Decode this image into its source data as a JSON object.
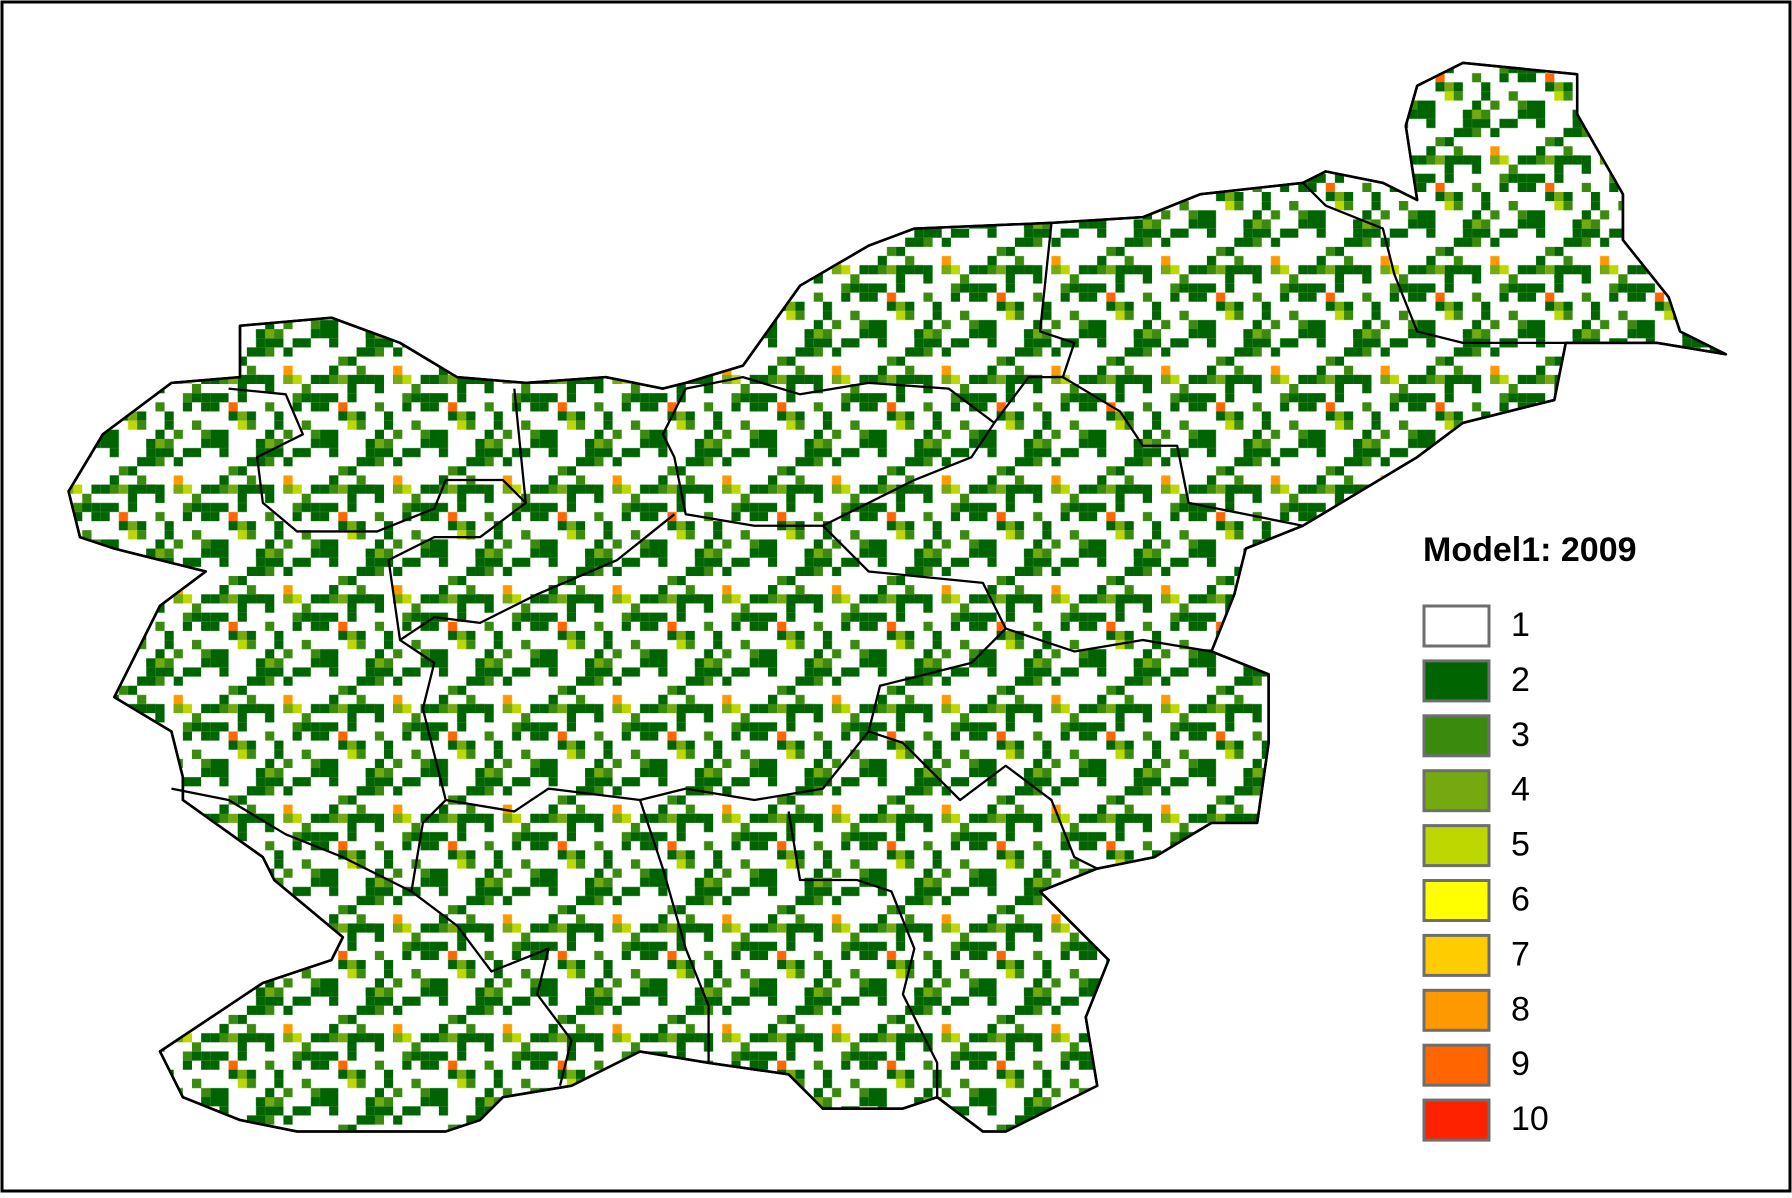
{
  "map": {
    "legend": {
      "title": "Model1: 2009",
      "items": [
        {
          "label": "1",
          "color": "#ffffff"
        },
        {
          "label": "2",
          "color": "#006400"
        },
        {
          "label": "3",
          "color": "#3a8a0e"
        },
        {
          "label": "4",
          "color": "#74aa10"
        },
        {
          "label": "5",
          "color": "#bcd800"
        },
        {
          "label": "6",
          "color": "#ffff00"
        },
        {
          "label": "7",
          "color": "#ffcc00"
        },
        {
          "label": "8",
          "color": "#ff9900"
        },
        {
          "label": "9",
          "color": "#ff6600"
        },
        {
          "label": "10",
          "color": "#ff2200"
        }
      ]
    }
  }
}
